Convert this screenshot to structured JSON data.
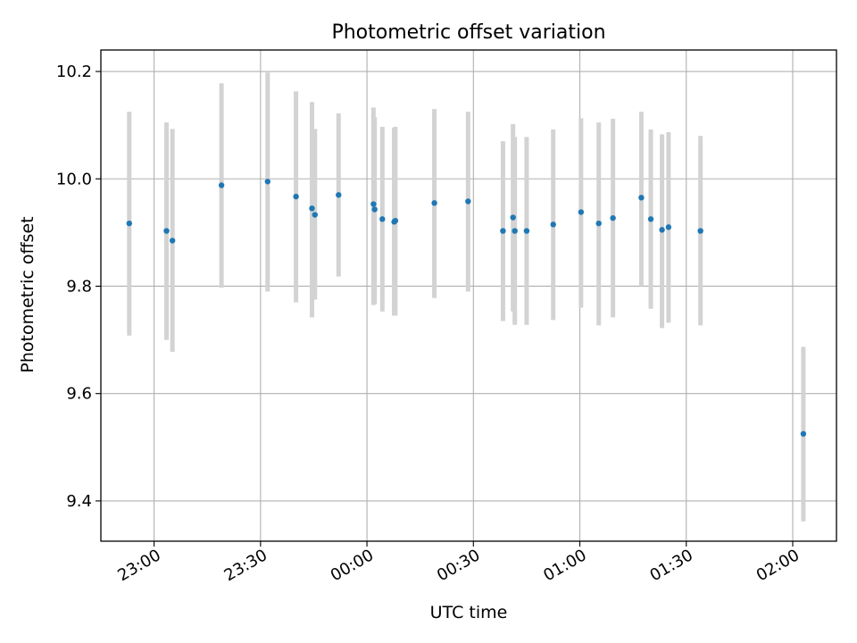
{
  "chart_data": {
    "type": "scatter",
    "title": "Photometric offset variation",
    "xlabel": "UTC time",
    "ylabel": "Photometric offset",
    "x_axis_kind": "time",
    "x_ticks": [
      "23:00",
      "23:30",
      "00:00",
      "00:30",
      "01:00",
      "01:30",
      "02:00"
    ],
    "y_ticks": [
      "9.4",
      "9.6",
      "9.8",
      "10.0",
      "10.2"
    ],
    "xlim": [
      "22:45:00",
      "02:12:20"
    ],
    "ylim": [
      9.325,
      10.24
    ],
    "grid": true,
    "series": [
      {
        "x": [
          "22:53:00",
          "23:03:30",
          "23:05:10",
          "23:19:00",
          "23:32:00",
          "23:40:00",
          "23:44:30",
          "23:45:20",
          "23:52:00",
          "24:01:50",
          "24:02:10",
          "24:04:20",
          "24:07:40",
          "24:08:00",
          "24:19:00",
          "24:28:30",
          "24:38:20",
          "24:41:10",
          "24:41:40",
          "24:45:00",
          "24:52:30",
          "25:00:20",
          "25:05:20",
          "25:09:20",
          "25:17:20",
          "25:20:00",
          "25:23:10",
          "25:25:00",
          "25:34:00",
          "26:03:00"
        ],
        "y": [
          9.917,
          9.903,
          9.885,
          9.988,
          9.995,
          9.967,
          9.945,
          9.933,
          9.97,
          9.953,
          9.943,
          9.925,
          9.92,
          9.922,
          9.955,
          9.958,
          9.903,
          9.928,
          9.903,
          9.903,
          9.915,
          9.938,
          9.917,
          9.927,
          9.965,
          9.925,
          9.905,
          9.91,
          9.903,
          9.525
        ],
        "err_low": [
          9.708,
          9.7,
          9.678,
          9.797,
          9.79,
          9.77,
          9.742,
          9.775,
          9.818,
          9.765,
          9.767,
          9.753,
          9.745,
          9.745,
          9.778,
          9.79,
          9.735,
          9.753,
          9.728,
          9.728,
          9.737,
          9.76,
          9.727,
          9.742,
          9.8,
          9.758,
          9.722,
          9.732,
          9.727,
          9.362
        ],
        "err_high": [
          10.125,
          10.105,
          10.093,
          10.178,
          10.198,
          10.163,
          10.143,
          10.093,
          10.122,
          10.133,
          10.115,
          10.097,
          10.095,
          10.097,
          10.13,
          10.125,
          10.07,
          10.102,
          10.078,
          10.078,
          10.092,
          10.113,
          10.105,
          10.112,
          10.125,
          10.092,
          10.083,
          10.087,
          10.08,
          9.687
        ],
        "point_color": "#1f77b4",
        "errorbar_color": "#d3d3d3"
      }
    ],
    "grid_color": "#b0b0b0",
    "axis_color": "#000000"
  }
}
